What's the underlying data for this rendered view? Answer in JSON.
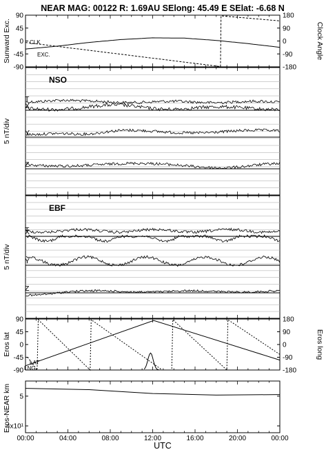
{
  "header": {
    "title": "NEAR MAG: 00122  R: 1.69AU  SElong:   45.49 E  SElat:   -6.68 N"
  },
  "chart_data": [
    {
      "type": "line",
      "panel": "angles",
      "ylabel_left": "Sunward Exc.",
      "ylabel_right": "Clock Angle",
      "y_ticks_left": [
        "90",
        "45",
        "0",
        "-45",
        "-90"
      ],
      "y_ticks_right": [
        "180",
        "90",
        "0",
        "-90",
        "-180"
      ],
      "ylim_left": [
        -90,
        90
      ],
      "ylim_right": [
        -180,
        180
      ],
      "series_labels": [
        "CLK",
        "EXC."
      ],
      "series": [
        {
          "name": "CLK",
          "axis": "right",
          "x": [
            0,
            18.4,
            18.45,
            24
          ],
          "values": [
            -10,
            -178,
            175,
            140
          ]
        },
        {
          "name": "EXC.",
          "axis": "left",
          "x": [
            0,
            3,
            6,
            9,
            12,
            15,
            18,
            21,
            24
          ],
          "values": [
            -28,
            -18,
            -5,
            5,
            11,
            10,
            2,
            -9,
            -22
          ]
        }
      ]
    },
    {
      "type": "line",
      "panel": "NSO",
      "panel_label": "NSO",
      "ylabel": "5 nT/div",
      "trace_labels": [
        "T",
        "X",
        "Y",
        "Z"
      ]
    },
    {
      "type": "line",
      "panel": "EBF",
      "panel_label": "EBF",
      "ylabel": "5 nT/div",
      "trace_labels": [
        "T",
        "X",
        "Y",
        "Z"
      ]
    },
    {
      "type": "line",
      "panel": "eros-position",
      "ylabel_left": "Eros lat",
      "ylabel_right": "Eros long",
      "y_ticks_left": [
        "90",
        "45",
        "0",
        "-45",
        "-90"
      ],
      "y_ticks_right": [
        "180",
        "90",
        "0",
        "-90",
        "-180"
      ],
      "ylim_left": [
        -90,
        90
      ],
      "ylim_right": [
        -180,
        180
      ],
      "series_labels": [
        "LAT",
        "LNG"
      ],
      "series": [
        {
          "name": "LAT",
          "axis": "left",
          "x": [
            0,
            12.1,
            24
          ],
          "values": [
            -75,
            85,
            -55
          ]
        },
        {
          "name": "LNG",
          "axis": "right",
          "x": [
            0.2,
            1.1,
            1.2,
            6.1,
            6.2,
            12.9,
            13.8,
            13.9,
            19.0,
            19.1,
            24
          ],
          "values": [
            -90,
            -180,
            175,
            -180,
            175,
            -180,
            -180,
            175,
            -180,
            175,
            -70
          ]
        }
      ]
    },
    {
      "type": "line",
      "panel": "range",
      "ylabel": "Eros-NEAR km",
      "y_ticks": [
        "5",
        "4x10¹"
      ],
      "log_scale": true,
      "series": [
        {
          "name": "",
          "x": [
            0,
            6,
            12,
            18,
            24
          ],
          "values": [
            53,
            52.5,
            51,
            50.4,
            50.6
          ]
        }
      ]
    }
  ],
  "x_axis": {
    "label": "UTC",
    "ticks": [
      "00:00",
      "04:00",
      "08:00",
      "12:00",
      "16:00",
      "20:00",
      "00:00"
    ],
    "range_hours": [
      0,
      24
    ]
  }
}
